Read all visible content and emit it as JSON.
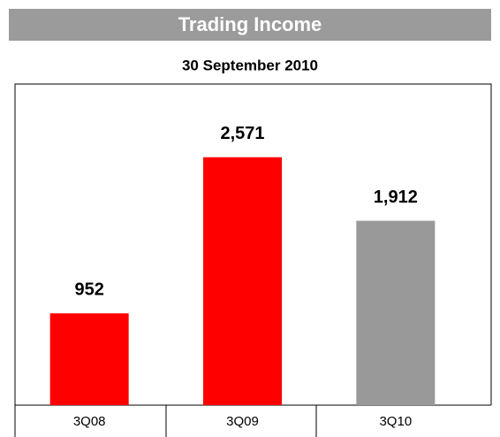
{
  "chart_data": {
    "type": "bar",
    "title": "Trading Income",
    "subtitle": "30 September 2010",
    "categories": [
      "3Q08",
      "3Q09",
      "3Q10"
    ],
    "values": [
      952,
      2571,
      1912
    ],
    "value_labels": [
      "952",
      "2,571",
      "1,912"
    ],
    "colors": [
      "#ff0000",
      "#ff0000",
      "#999999"
    ],
    "ylim": [
      0,
      3330
    ]
  }
}
